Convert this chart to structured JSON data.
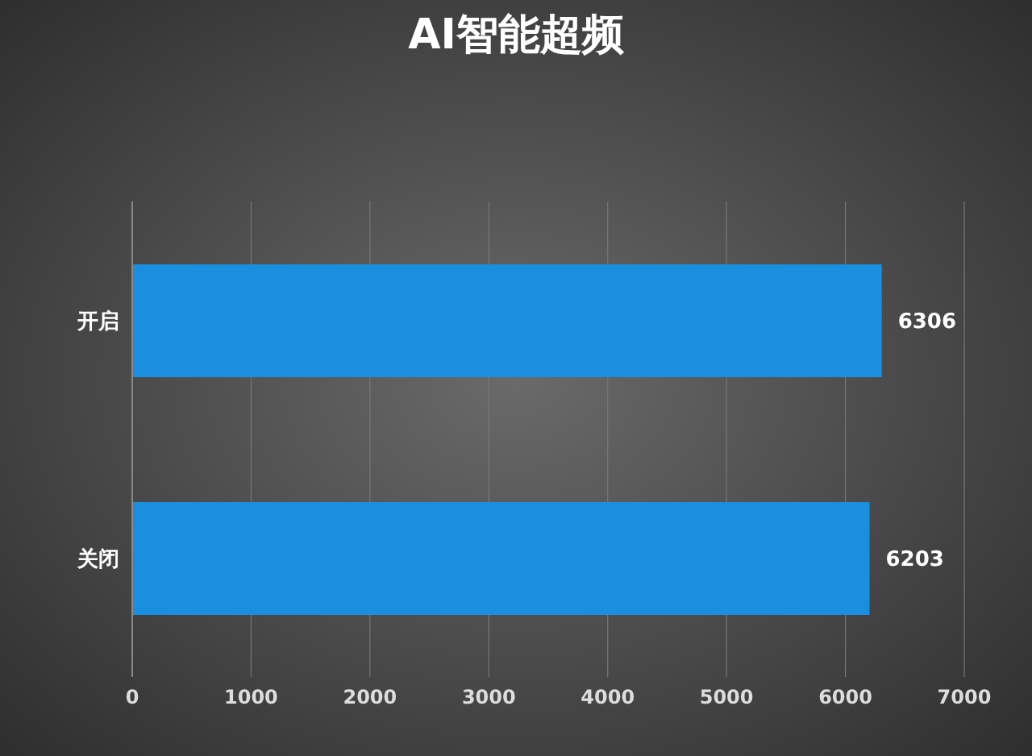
{
  "chart_data": {
    "type": "bar",
    "title": "AI智能超频",
    "orientation": "horizontal",
    "categories": [
      "开启",
      "关闭"
    ],
    "series": [
      {
        "color": "#1a8fe0",
        "values": [
          6306,
          6203
        ]
      }
    ],
    "xlim": [
      0,
      7000
    ],
    "xticks": [
      0,
      1000,
      2000,
      3000,
      4000,
      5000,
      6000,
      7000
    ],
    "grid": "x",
    "data_labels": true
  }
}
